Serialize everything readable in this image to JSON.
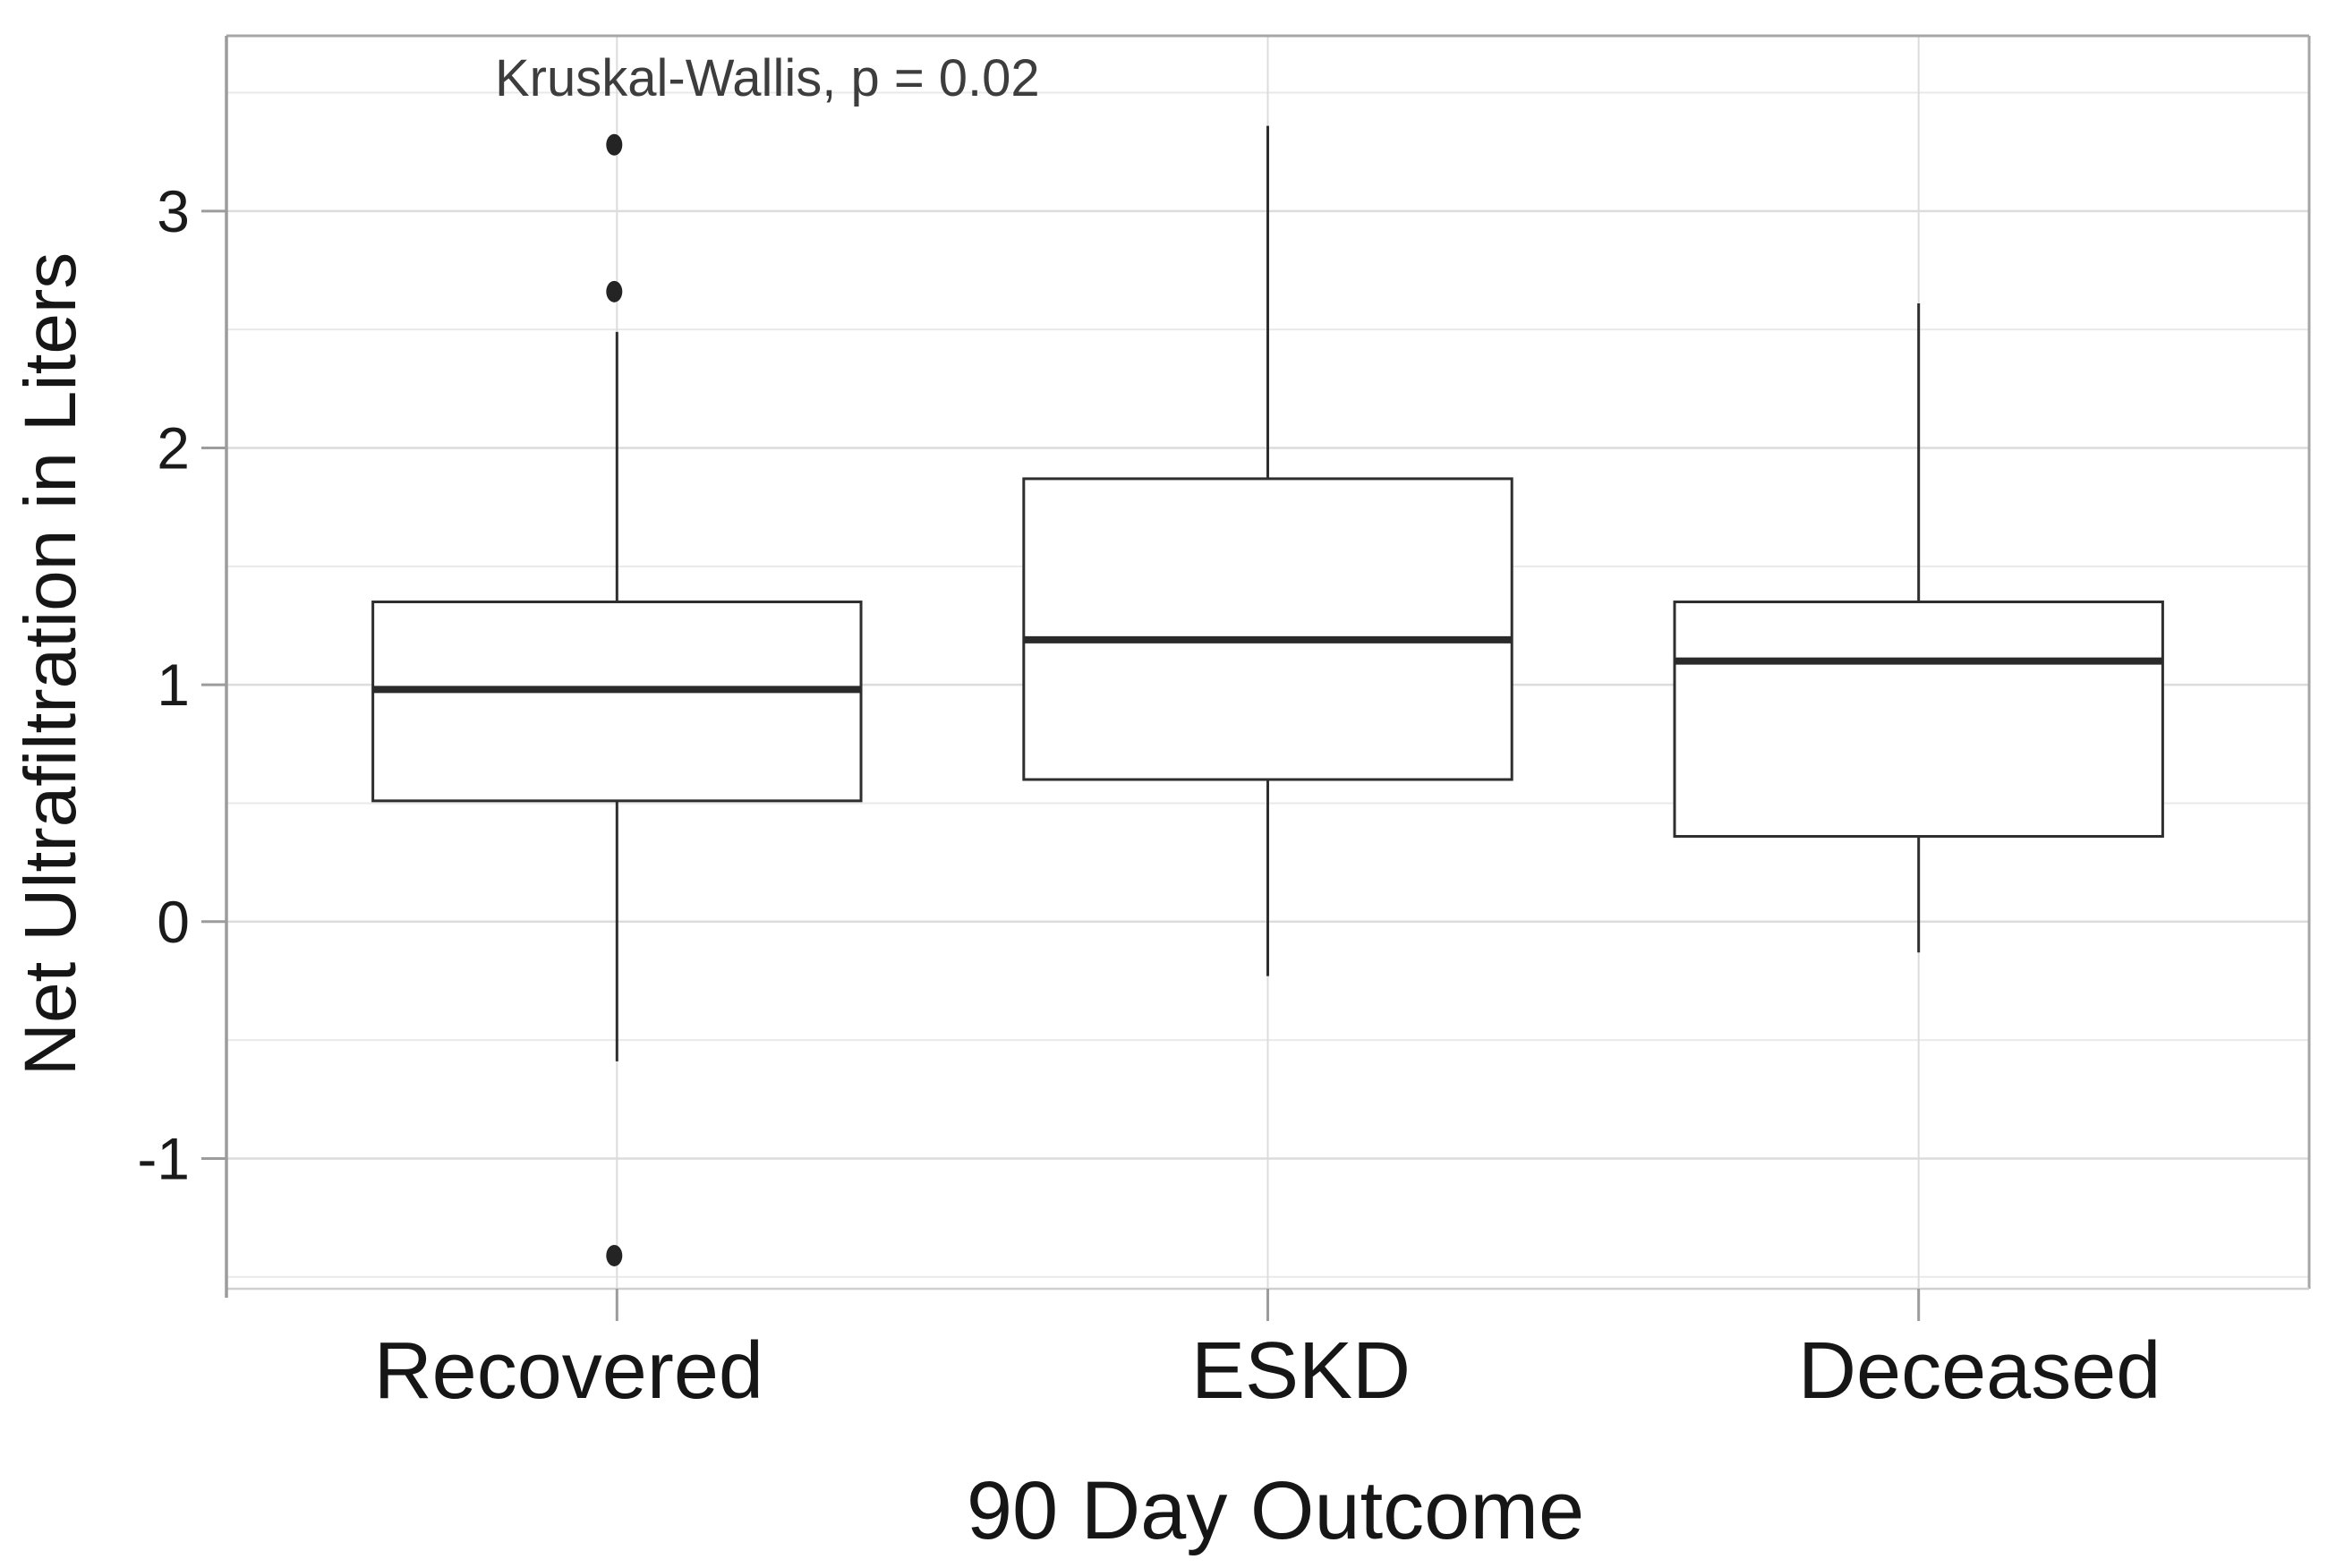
{
  "chart_data": {
    "type": "boxplot",
    "annotation": "Kruskal-Wallis, p = 0.02",
    "xlabel": "90 Day Outcome",
    "ylabel": "Net Ultrafiltration in Liters",
    "categories": [
      "Recovered",
      "ESKD",
      "Deceased"
    ],
    "series": [
      {
        "category": "Recovered",
        "whisker_low": -0.59,
        "q1": 0.51,
        "median": 0.98,
        "q3": 1.35,
        "whisker_high": 2.49,
        "outliers": [
          3.28,
          2.66,
          -1.41
        ]
      },
      {
        "category": "ESKD",
        "whisker_low": -0.23,
        "q1": 0.6,
        "median": 1.19,
        "q3": 1.87,
        "whisker_high": 3.36,
        "outliers": []
      },
      {
        "category": "Deceased",
        "whisker_low": -0.13,
        "q1": 0.36,
        "median": 1.1,
        "q3": 1.35,
        "whisker_high": 2.61,
        "outliers": []
      }
    ],
    "yticks": [
      3,
      2,
      1,
      0,
      -1
    ],
    "ylim": [
      -1.55,
      3.74
    ],
    "minor_grid_step": 0.5,
    "grid": true,
    "legend_position": "none",
    "colors": {
      "box_stroke": "#2e2e2e",
      "median": "#2a2a2a",
      "outlier": "#242424",
      "grid_major": "#dcdcdc",
      "grid_minor": "#e9e9e9",
      "axis_line": "#9c9c9c",
      "panel_border": "#a6a6a6",
      "tick_text": "#1a1a1a",
      "label_text": "#161616",
      "annotation_text": "#3d3d3d",
      "background": "#ffffff"
    }
  }
}
